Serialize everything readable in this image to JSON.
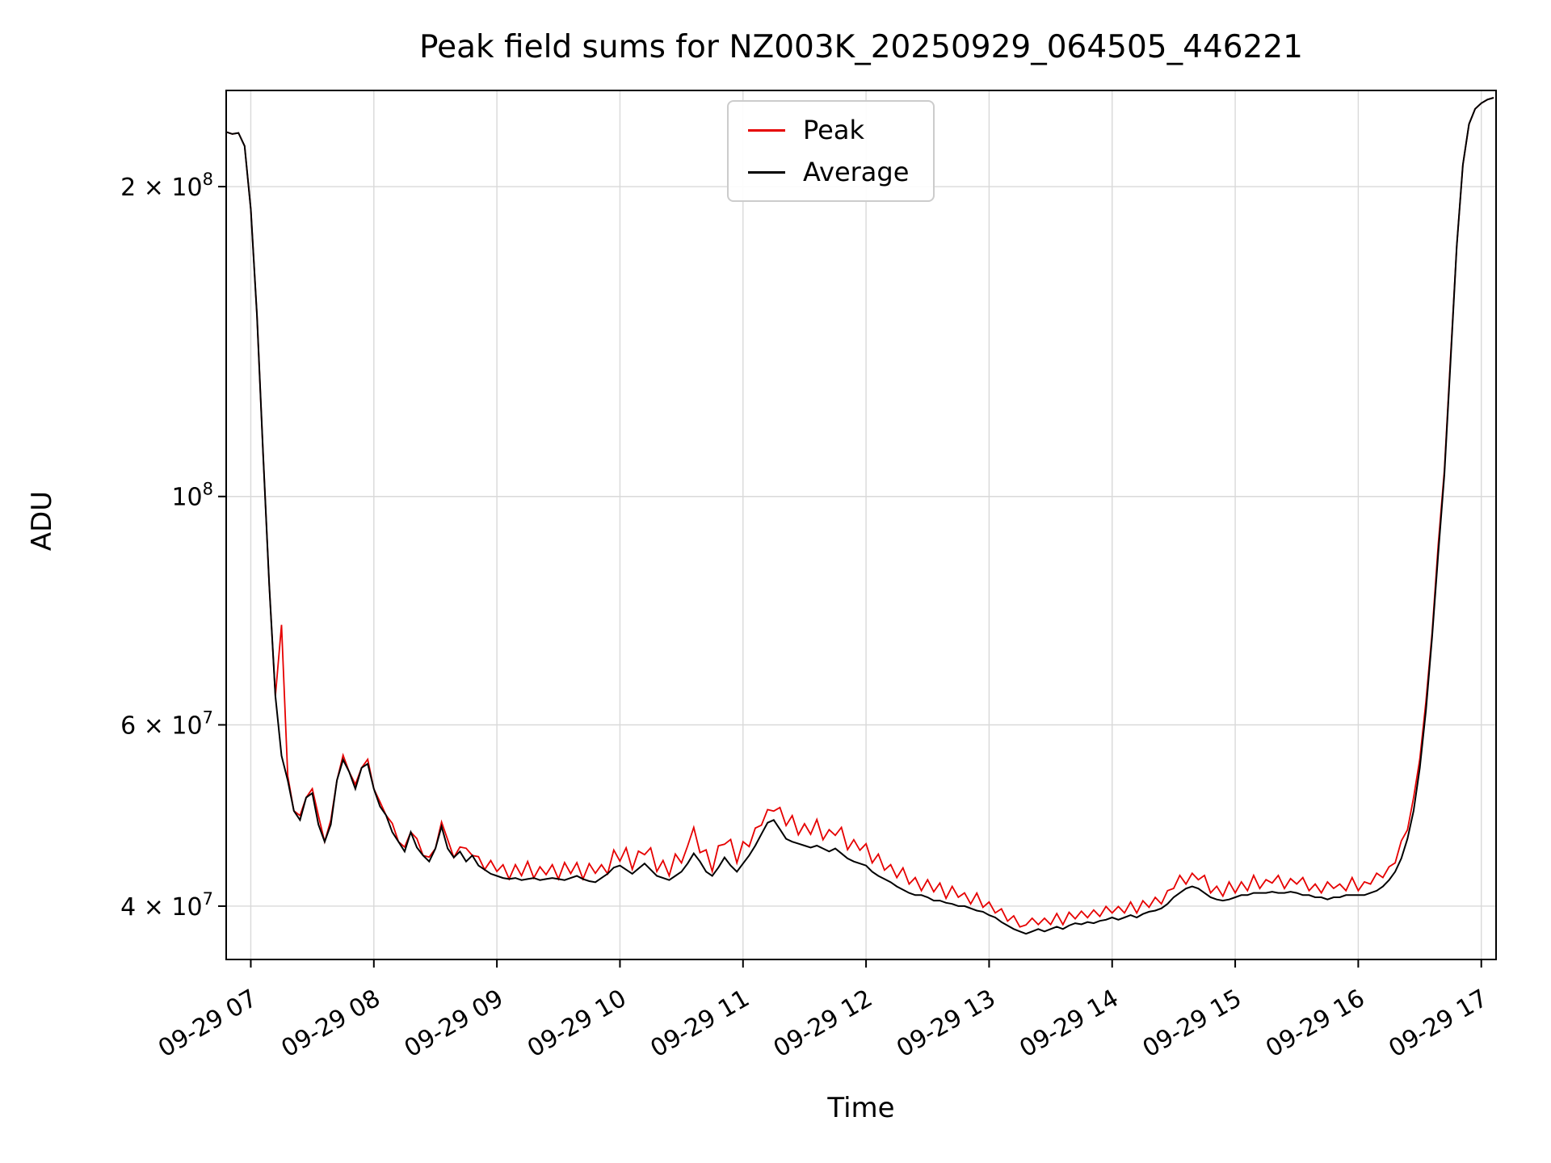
{
  "title": "Peak field sums for NZ003K_20250929_064505_446221",
  "axes": {
    "x_label": "Time",
    "y_label": "ADU"
  },
  "legend": {
    "items": [
      {
        "label": "Peak",
        "color": "#e60000"
      },
      {
        "label": "Average",
        "color": "#000000"
      }
    ]
  },
  "chart_data": {
    "type": "line",
    "title": "Peak field sums for NZ003K_20250929_064505_446221",
    "xlabel": "Time",
    "ylabel": "ADU",
    "yscale": "log",
    "grid": true,
    "legend_position": "upper center",
    "ylim": [
      35500000,
      248000000
    ],
    "xlim_hours": [
      6.8,
      17.12
    ],
    "x_ticks": [
      {
        "hour": 7,
        "label": "09-29 07"
      },
      {
        "hour": 8,
        "label": "09-29 08"
      },
      {
        "hour": 9,
        "label": "09-29 09"
      },
      {
        "hour": 10,
        "label": "09-29 10"
      },
      {
        "hour": 11,
        "label": "09-29 11"
      },
      {
        "hour": 12,
        "label": "09-29 12"
      },
      {
        "hour": 13,
        "label": "09-29 13"
      },
      {
        "hour": 14,
        "label": "09-29 14"
      },
      {
        "hour": 15,
        "label": "09-29 15"
      },
      {
        "hour": 16,
        "label": "09-29 16"
      },
      {
        "hour": 17,
        "label": "09-29 17"
      }
    ],
    "y_ticks": [
      {
        "value": 40000000,
        "label": "4 × 10^7"
      },
      {
        "value": 60000000,
        "label": "6 × 10^7"
      },
      {
        "value": 100000000,
        "label": "10^8"
      },
      {
        "value": 200000000,
        "label": "2 × 10^8"
      }
    ],
    "sampling": {
      "x_start_hour": 6.8,
      "x_step_hours": 0.05
    },
    "unit_scale": 10000000,
    "series": [
      {
        "name": "Average",
        "color": "#000000",
        "values_e7": [
          22.6,
          22.5,
          22.55,
          21.9,
          19.0,
          15.0,
          11.0,
          8.2,
          6.4,
          5.6,
          5.3,
          4.95,
          4.85,
          5.1,
          5.15,
          4.8,
          4.62,
          4.8,
          5.3,
          5.55,
          5.4,
          5.2,
          5.45,
          5.5,
          5.2,
          5.0,
          4.9,
          4.72,
          4.62,
          4.52,
          4.72,
          4.56,
          4.48,
          4.42,
          4.55,
          4.78,
          4.55,
          4.46,
          4.52,
          4.42,
          4.48,
          4.38,
          4.34,
          4.3,
          4.28,
          4.26,
          4.25,
          4.26,
          4.24,
          4.25,
          4.26,
          4.24,
          4.25,
          4.26,
          4.25,
          4.24,
          4.26,
          4.28,
          4.25,
          4.23,
          4.22,
          4.26,
          4.3,
          4.36,
          4.38,
          4.34,
          4.3,
          4.35,
          4.4,
          4.34,
          4.28,
          4.26,
          4.24,
          4.28,
          4.32,
          4.4,
          4.5,
          4.42,
          4.32,
          4.28,
          4.36,
          4.46,
          4.38,
          4.32,
          4.4,
          4.48,
          4.58,
          4.7,
          4.82,
          4.85,
          4.75,
          4.65,
          4.62,
          4.6,
          4.58,
          4.56,
          4.58,
          4.55,
          4.52,
          4.55,
          4.5,
          4.45,
          4.42,
          4.4,
          4.38,
          4.32,
          4.28,
          4.25,
          4.22,
          4.18,
          4.15,
          4.12,
          4.1,
          4.1,
          4.08,
          4.05,
          4.05,
          4.03,
          4.02,
          4.0,
          4.0,
          3.98,
          3.96,
          3.95,
          3.92,
          3.9,
          3.86,
          3.83,
          3.8,
          3.78,
          3.76,
          3.78,
          3.8,
          3.78,
          3.8,
          3.82,
          3.8,
          3.83,
          3.85,
          3.84,
          3.86,
          3.85,
          3.87,
          3.88,
          3.9,
          3.88,
          3.9,
          3.92,
          3.9,
          3.93,
          3.95,
          3.96,
          3.98,
          4.02,
          4.08,
          4.12,
          4.16,
          4.18,
          4.16,
          4.12,
          4.08,
          4.06,
          4.05,
          4.06,
          4.08,
          4.1,
          4.1,
          4.12,
          4.12,
          4.12,
          4.13,
          4.12,
          4.12,
          4.13,
          4.12,
          4.1,
          4.1,
          4.08,
          4.08,
          4.06,
          4.08,
          4.08,
          4.1,
          4.1,
          4.1,
          4.1,
          4.12,
          4.14,
          4.18,
          4.24,
          4.32,
          4.45,
          4.65,
          4.95,
          5.45,
          6.2,
          7.3,
          8.8,
          10.5,
          13.5,
          17.5,
          21.0,
          23.0,
          23.8,
          24.1,
          24.3,
          24.4
        ]
      },
      {
        "name": "Peak",
        "color": "#e60000",
        "derivation": "peak = average * (1 + extra_pct/100)",
        "extra_pct": [
          0,
          0,
          0,
          0,
          0,
          0,
          0,
          0,
          0,
          34,
          1,
          0,
          1,
          0,
          1,
          2,
          0,
          1,
          0,
          1,
          0,
          1,
          0,
          1,
          0,
          1,
          0,
          2,
          0,
          1,
          0,
          2,
          0,
          1,
          0,
          1,
          2,
          0,
          1,
          3,
          0,
          2,
          0,
          3,
          1,
          3,
          0,
          3,
          1,
          4,
          0,
          3,
          1,
          3,
          0,
          4,
          1,
          3,
          0,
          4,
          2,
          3,
          0,
          4,
          1,
          5,
          1,
          4,
          2,
          5,
          1,
          4,
          1,
          5,
          2,
          4,
          6,
          2,
          5,
          1,
          5,
          3,
          6,
          2,
          5,
          2,
          4,
          2,
          3,
          2,
          5,
          3,
          6,
          2,
          5,
          3,
          6,
          2,
          5,
          3,
          6,
          2,
          5,
          3,
          5,
          2,
          5,
          2,
          4,
          2,
          5,
          2,
          4,
          1,
          4,
          2,
          4,
          1,
          4,
          2,
          3,
          1,
          4,
          1,
          3,
          1,
          3,
          1,
          3,
          1,
          2,
          3,
          1,
          3,
          1,
          3,
          1,
          3,
          1,
          3,
          1,
          3,
          1,
          3,
          1,
          3,
          1,
          3,
          1,
          3,
          1,
          3,
          1,
          3,
          2,
          4,
          1,
          3,
          2,
          4,
          1,
          3,
          1,
          4,
          1,
          3,
          1,
          4,
          1,
          3,
          2,
          4,
          1,
          3,
          2,
          4,
          1,
          3,
          1,
          4,
          2,
          3,
          1,
          4,
          1,
          3,
          2,
          4,
          2,
          3,
          2,
          4,
          2,
          3,
          2,
          2,
          1,
          2,
          1,
          1,
          0,
          0,
          0,
          0,
          0,
          0,
          0
        ]
      }
    ],
    "colors": {
      "grid": "#d9d9d9",
      "spine": "#000000",
      "background": "#ffffff"
    }
  }
}
